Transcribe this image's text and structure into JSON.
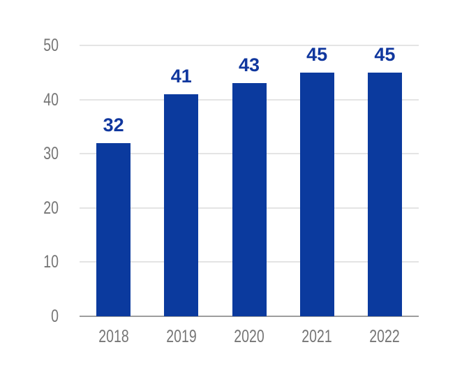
{
  "chart_data": {
    "type": "bar",
    "title": "",
    "xlabel": "",
    "ylabel": "",
    "categories": [
      "2018",
      "2019",
      "2020",
      "2021",
      "2022"
    ],
    "values": [
      32,
      41,
      43,
      45,
      45
    ],
    "ylim": [
      0,
      50
    ],
    "yticks": [
      0,
      10,
      20,
      30,
      40,
      50
    ],
    "grid": true,
    "legend": "none",
    "colors": {
      "bar": "#0b3a9e",
      "value_label": "#10379e",
      "tick_label": "#757575",
      "gridline": "#e4e4e4",
      "axis_line": "#9d9d9d",
      "background": "#ffffff"
    }
  }
}
